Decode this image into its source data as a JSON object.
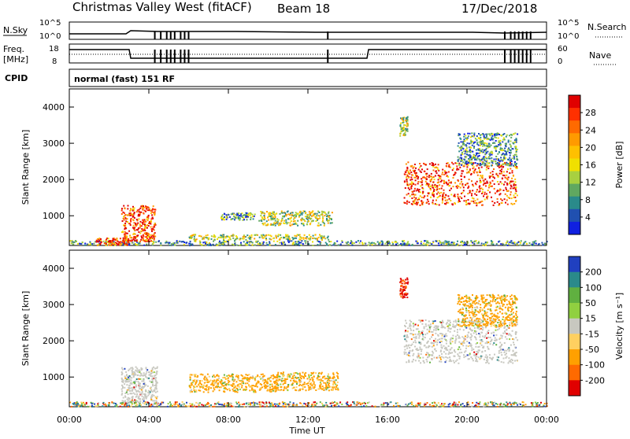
{
  "header": {
    "title": "Christmas Valley West (fitACF)",
    "beam": "Beam 18",
    "date": "17/Dec/2018"
  },
  "strip_panels": {
    "nsky": {
      "label": "N.Sky",
      "ticks": [
        "10^5",
        "10^0"
      ],
      "right_label": "N.Search",
      "right_ticks": [
        "10^5",
        "10^0"
      ]
    },
    "freq": {
      "label_line1": "Freq.",
      "label_line2": "[MHz]",
      "ticks": [
        "18",
        "8"
      ],
      "right_label": "Nave",
      "right_ticks": [
        "60",
        "0"
      ]
    },
    "cpid": {
      "label": "CPID",
      "value": "normal (fast) 151 RF"
    }
  },
  "chart_data": [
    {
      "type": "heatmap",
      "name": "power",
      "ylabel": "Slant Range [km]",
      "yticks": [
        "1000",
        "2000",
        "3000",
        "4000"
      ],
      "ylim": [
        180,
        4500
      ],
      "xlabel": "Time UT",
      "xticks": [
        "00:00",
        "04:00",
        "08:00",
        "12:00",
        "16:00",
        "20:00",
        "00:00"
      ],
      "xlim_hours": [
        0,
        24
      ],
      "colorbar": {
        "label": "Power [dB]",
        "ticks": [
          "28",
          "24",
          "20",
          "16",
          "12",
          "8",
          "4"
        ],
        "colors": [
          "#e00000",
          "#ff3000",
          "#ff6a00",
          "#ff9a00",
          "#ffc000",
          "#f0e000",
          "#a8d040",
          "#60a860",
          "#2a8a8a",
          "#2050b0",
          "#1020e0"
        ]
      },
      "regions": [
        {
          "t0": 0.0,
          "t1": 24.0,
          "r0": 200,
          "r1": 330,
          "mix": "low"
        },
        {
          "t0": 1.3,
          "t1": 3.0,
          "r0": 200,
          "r1": 400,
          "mix": "high"
        },
        {
          "t0": 2.6,
          "t1": 4.3,
          "r0": 300,
          "r1": 1300,
          "mix": "high"
        },
        {
          "t0": 7.6,
          "t1": 9.3,
          "r0": 900,
          "r1": 1100,
          "mix": "low"
        },
        {
          "t0": 9.5,
          "t1": 13.2,
          "r0": 750,
          "r1": 1150,
          "mix": "mid"
        },
        {
          "t0": 6.0,
          "t1": 13.0,
          "r0": 350,
          "r1": 500,
          "mix": "mid"
        },
        {
          "t0": 16.6,
          "t1": 17.0,
          "r0": 3200,
          "r1": 3750,
          "mix": "mid"
        },
        {
          "t0": 16.8,
          "t1": 22.5,
          "r0": 1300,
          "r1": 2500,
          "mix": "high"
        },
        {
          "t0": 19.5,
          "t1": 22.5,
          "r0": 2400,
          "r1": 3300,
          "mix": "low"
        }
      ]
    },
    {
      "type": "heatmap",
      "name": "velocity",
      "ylabel": "Slant Range [km]",
      "yticks": [
        "1000",
        "2000",
        "3000",
        "4000"
      ],
      "ylim": [
        180,
        4500
      ],
      "xlabel": "Time UT",
      "xticks": [
        "00:00",
        "04:00",
        "08:00",
        "12:00",
        "16:00",
        "20:00",
        "00:00"
      ],
      "xlim_hours": [
        0,
        24
      ],
      "colorbar": {
        "label": "Velocity [m s⁻¹]",
        "ticks": [
          "200",
          "100",
          "50",
          "15",
          "-15",
          "-50",
          "-100",
          "-200"
        ],
        "colors": [
          "#2040c0",
          "#2a8a8a",
          "#60b040",
          "#90d040",
          "#c8c8c0",
          "#ffd060",
          "#ffa000",
          "#ff6a00",
          "#e00000"
        ]
      },
      "regions": [
        {
          "t0": 0.0,
          "t1": 24.0,
          "r0": 200,
          "r1": 330,
          "mix": "vlow"
        },
        {
          "t0": 2.6,
          "t1": 4.4,
          "r0": 300,
          "r1": 1300,
          "mix": "grey"
        },
        {
          "t0": 6.0,
          "t1": 10.5,
          "r0": 600,
          "r1": 1100,
          "mix": "orange"
        },
        {
          "t0": 10.3,
          "t1": 13.5,
          "r0": 650,
          "r1": 1150,
          "mix": "orange"
        },
        {
          "t0": 16.6,
          "t1": 17.0,
          "r0": 3200,
          "r1": 3750,
          "mix": "red"
        },
        {
          "t0": 16.8,
          "t1": 22.5,
          "r0": 1400,
          "r1": 2600,
          "mix": "grey"
        },
        {
          "t0": 19.5,
          "t1": 22.5,
          "r0": 2400,
          "r1": 3300,
          "mix": "orange"
        }
      ]
    }
  ]
}
